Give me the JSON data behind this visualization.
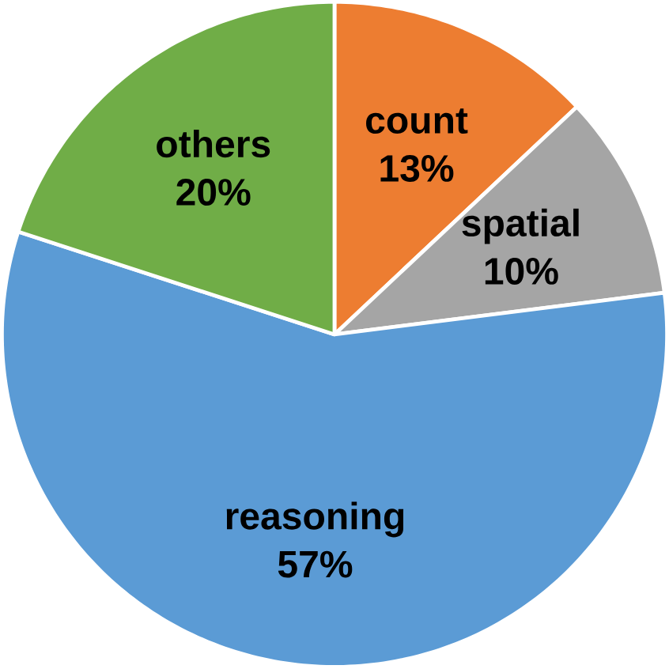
{
  "chart_data": {
    "type": "pie",
    "categories": [
      "count",
      "spatial",
      "reasoning",
      "others"
    ],
    "values": [
      13,
      10,
      57,
      20
    ],
    "colors": [
      "#ed7d31",
      "#a5a5a5",
      "#5b9bd5",
      "#70ad47"
    ],
    "value_labels": [
      "13%",
      "10%",
      "57%",
      "20%"
    ]
  }
}
